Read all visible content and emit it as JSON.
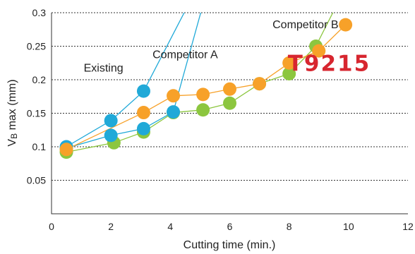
{
  "chart_data": {
    "type": "line",
    "xlabel": "Cutting time  (min.)",
    "ylabel_main": "V",
    "ylabel_sub": "B",
    "ylabel_rest": " max (mm)",
    "xlim": [
      0,
      12
    ],
    "ylim": [
      0,
      0.3
    ],
    "xticks": [
      0,
      2,
      4,
      6,
      8,
      10,
      12
    ],
    "yticks": [
      0.05,
      0.1,
      0.15,
      0.2,
      0.25,
      0.3
    ],
    "ytick_labels": [
      "0.05",
      "0.1",
      "0.15",
      "0.2",
      "0.25",
      "0.3"
    ],
    "grid": "horizontal-dotted",
    "series": [
      {
        "key": "existing",
        "color": "#20a9d8",
        "points": [
          [
            0.5,
            0.1
          ],
          [
            2,
            0.139
          ],
          [
            3.1,
            0.183
          ]
        ],
        "tail": [
          [
            4.7,
            0.32
          ]
        ]
      },
      {
        "key": "competitor-a",
        "color": "#8cc63f",
        "points": [
          [
            0.5,
            0.092
          ],
          [
            2.1,
            0.106
          ],
          [
            3.1,
            0.122
          ],
          [
            4.1,
            0.151
          ],
          [
            5.1,
            0.155
          ],
          [
            6,
            0.165
          ],
          [
            7,
            0.194
          ],
          [
            8,
            0.209
          ],
          [
            8.9,
            0.25
          ]
        ],
        "tail": [
          [
            9.7,
            0.32
          ]
        ]
      },
      {
        "key": "competitor-b",
        "color": "#20a9d8",
        "points": [
          [
            0.5,
            0.098
          ],
          [
            2,
            0.117
          ],
          [
            3.1,
            0.127
          ],
          [
            4.1,
            0.152
          ]
        ],
        "tail": [
          [
            5.15,
            0.32
          ]
        ]
      },
      {
        "key": "t9215",
        "color": "#f7a129",
        "points": [
          [
            0.5,
            0.096
          ],
          [
            3.1,
            0.151
          ],
          [
            4.1,
            0.176
          ],
          [
            5.1,
            0.178
          ],
          [
            6,
            0.186
          ],
          [
            7,
            0.194
          ],
          [
            8,
            0.225
          ],
          [
            9,
            0.243
          ],
          [
            9.9,
            0.282
          ]
        ]
      }
    ],
    "annotations": [
      {
        "key": "existing",
        "text": "Existing",
        "x": 1.75,
        "y": 0.212
      },
      {
        "key": "competitor-a",
        "text": "Competitor A",
        "x": 4.5,
        "y": 0.232
      },
      {
        "key": "competitor-b",
        "text": "Competitor B",
        "x": 8.55,
        "y": 0.277
      }
    ],
    "logo": {
      "text": "T9215",
      "color": "#d7262f",
      "x": 9.35,
      "y": 0.213
    }
  }
}
